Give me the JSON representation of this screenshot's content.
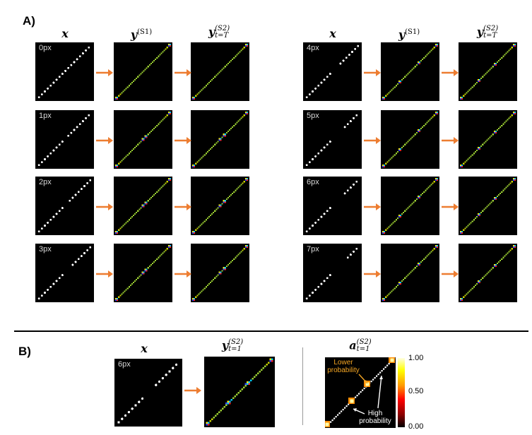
{
  "panel_a": {
    "label": "A)",
    "left_headers": {
      "x": "x",
      "y_s1": "y",
      "y_s1_sup": "(S1)",
      "y_s2": "y",
      "y_s2_sup": "(S2)",
      "y_s2_sub": "t=T"
    },
    "right_headers": {
      "x": "x",
      "y_s1": "y",
      "y_s1_sup": "(S1)",
      "y_s2": "y",
      "y_s2_sup": "(S2)",
      "y_s2_sub": "t=T"
    },
    "rows_left": [
      "0px",
      "1px",
      "2px",
      "3px"
    ],
    "rows_right": [
      "4px",
      "5px",
      "6px",
      "7px"
    ]
  },
  "panel_b": {
    "label": "B)",
    "headers": {
      "x": "x",
      "y": "y",
      "y_sup": "(S2)",
      "y_sub": "t=1",
      "a": "a",
      "a_sup": "(S2)",
      "a_sub": "t=1"
    },
    "input_label": "6px",
    "annotation_lower": "Lower\nprobability",
    "annotation_high": "High\nprobability",
    "colorbar_ticks": [
      "1.00",
      "0.50",
      "0.00"
    ]
  },
  "colors": {
    "arrow": "#ed7d31",
    "annotation_lower": "#f5a623",
    "annotation_high": "#ffffff",
    "background": "#000000"
  }
}
